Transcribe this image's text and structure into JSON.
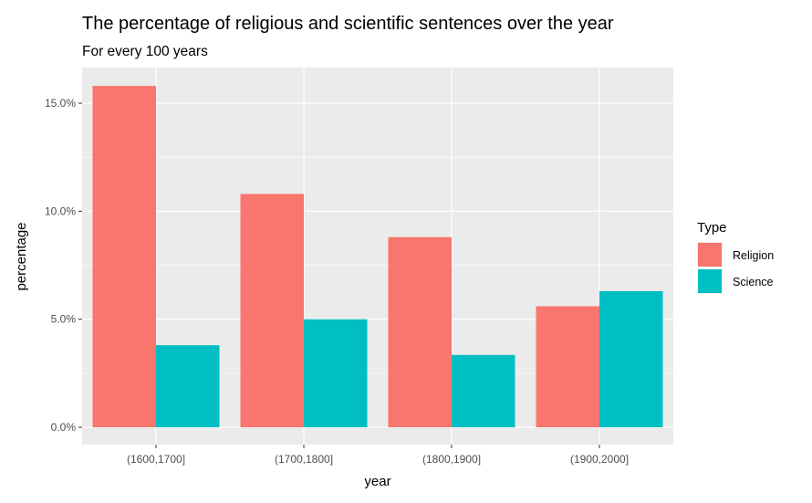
{
  "chart_data": {
    "type": "bar",
    "title": "The percentage of religious and scientific sentences over the year",
    "subtitle": "For every 100 years",
    "xlabel": "year",
    "ylabel": "percentage",
    "categories": [
      "(1600,1700]",
      "(1700,1800]",
      "(1800,1900]",
      "(1900,2000]"
    ],
    "series": [
      {
        "name": "Religion",
        "color": "#F8766D",
        "values": [
          15.8,
          10.8,
          8.8,
          5.6
        ]
      },
      {
        "name": "Science",
        "color": "#00BFC4",
        "values": [
          3.8,
          5.0,
          3.35,
          6.3
        ]
      }
    ],
    "ylim": [
      -0.8,
      16.65
    ],
    "yticks": [
      0,
      5,
      10,
      15
    ],
    "ytick_labels": [
      "0.0%",
      "5.0%",
      "10.0%",
      "15.0%"
    ],
    "grid": true,
    "panel_background": "#EBEBEB",
    "legend": {
      "title": "Type",
      "placement": "right"
    }
  }
}
